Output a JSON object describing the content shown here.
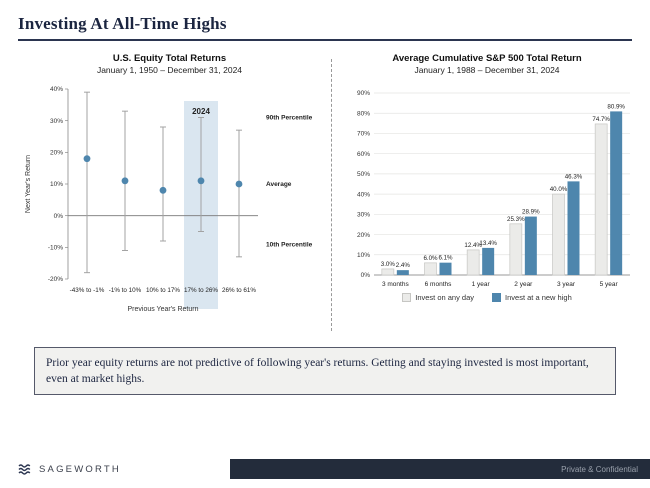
{
  "header": {
    "title": "Investing At All-Time Highs"
  },
  "colors": {
    "accent_blue": "#4e86ad",
    "bar_gray": "#ebebe9",
    "bar_gray_border": "#c6c6c3",
    "highlight_band": "#dae6f0",
    "footer_bar": "#232c3b",
    "title_navy": "#1b2540"
  },
  "chart_data": [
    {
      "type": "scatter",
      "subtype": "range-with-average",
      "title": "U.S. Equity Total Returns",
      "subtitle": "January 1, 1950 – December 31, 2024",
      "xlabel": "Previous Year's Return",
      "ylabel": "Next Year's Return",
      "ylim": [
        -20,
        40
      ],
      "ytick_step": 10,
      "categories": [
        "-43% to -1%",
        "-1% to 10%",
        "10% to 17%",
        "17% to 26%",
        "26% to 61%"
      ],
      "series": [
        {
          "name": "90th Percentile",
          "values": [
            39,
            33,
            28,
            31,
            27
          ]
        },
        {
          "name": "Average",
          "values": [
            18,
            11,
            8,
            11,
            10
          ]
        },
        {
          "name": "10th Percentile",
          "values": [
            -18,
            -11,
            -8,
            -5,
            -13
          ]
        }
      ],
      "highlight": {
        "index": 3,
        "label": "2024"
      },
      "annotations": [
        {
          "text": "90th Percentile",
          "y": 31
        },
        {
          "text": "Average",
          "y": 10
        },
        {
          "text": "10th Percentile",
          "y": -9
        }
      ]
    },
    {
      "type": "bar",
      "title": "Average Cumulative S&P 500 Total Return",
      "subtitle": "January 1, 1988 – December 31, 2024",
      "ylim": [
        0,
        90
      ],
      "ytick_step": 10,
      "grid": true,
      "legend_position": "bottom",
      "categories": [
        "3 months",
        "6 months",
        "1 year",
        "2 year",
        "3 year",
        "5 year"
      ],
      "series": [
        {
          "name": "Invest on any day",
          "values": [
            3.0,
            6.0,
            12.4,
            25.3,
            40.0,
            74.7
          ]
        },
        {
          "name": "Invest at a new high",
          "values": [
            2.4,
            6.1,
            13.4,
            28.9,
            46.3,
            80.9
          ]
        }
      ]
    }
  ],
  "callout": {
    "text": "Prior year equity returns are not predictive of following year's returns. Getting and staying invested is most important, even at market highs."
  },
  "footer": {
    "brand": "SAGEWORTH",
    "note": "Private & Confidential"
  }
}
